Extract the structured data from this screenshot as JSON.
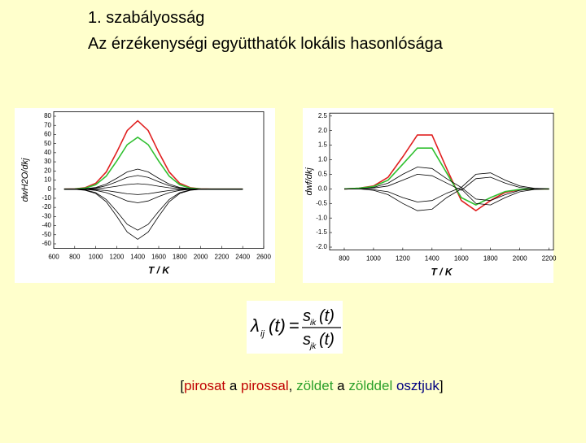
{
  "title_lines": [
    "1. szabályosság",
    "Az érzékenységi együtthatók lokális hasonlósága"
  ],
  "chart_data": [
    {
      "type": "line",
      "ylabel": "dwH2O/dkj",
      "xlabel": "T / K",
      "x": [
        700,
        800,
        900,
        1000,
        1100,
        1200,
        1300,
        1400,
        1500,
        1600,
        1700,
        1800,
        1900,
        2000,
        2100,
        2200,
        2300,
        2400
      ],
      "xlim": [
        600,
        2600
      ],
      "xticks": [
        600,
        800,
        1000,
        1200,
        1400,
        1600,
        1800,
        2000,
        2200,
        2400,
        2600
      ],
      "ylim": [
        -65,
        85
      ],
      "yticks": [
        80,
        70,
        60,
        50,
        40,
        30,
        20,
        10,
        0,
        -10,
        -20,
        -30,
        -40,
        -50,
        -60
      ],
      "series": [
        {
          "color": "#e02020",
          "values": [
            0,
            0.3,
            1.6,
            6.4,
            18.8,
            40.5,
            64.3,
            75,
            64.3,
            40.5,
            18.8,
            6.4,
            1.6,
            0.3,
            0,
            0,
            0,
            0
          ]
        },
        {
          "color": "#30c030",
          "values": [
            0,
            0.2,
            1.2,
            4.8,
            14.3,
            30.8,
            48.8,
            57,
            48.8,
            30.8,
            14.3,
            4.8,
            1.2,
            0.2,
            0,
            0,
            0,
            0
          ]
        },
        {
          "color": "#000000",
          "values": [
            0,
            0.1,
            0.5,
            1.9,
            5.5,
            11.9,
            18.9,
            22,
            18.9,
            11.9,
            5.5,
            1.9,
            0.5,
            0.1,
            0,
            0,
            0,
            0
          ]
        },
        {
          "color": "#000000",
          "values": [
            0,
            0.1,
            0.3,
            1.3,
            3.8,
            8.1,
            12.9,
            15,
            12.9,
            8.1,
            3.8,
            1.3,
            0.3,
            0.1,
            0,
            0,
            0,
            0
          ]
        },
        {
          "color": "#000000",
          "values": [
            0,
            0,
            0.1,
            0.5,
            1.5,
            3.2,
            5.1,
            6,
            5.1,
            3.2,
            1.5,
            0.5,
            0.1,
            0,
            0,
            0,
            0,
            0
          ]
        },
        {
          "color": "#000000",
          "values": [
            0,
            0,
            -0.1,
            -0.5,
            -1.5,
            -3.2,
            -5.1,
            -6,
            -5.1,
            -3.2,
            -1.5,
            -0.5,
            -0.1,
            0,
            0,
            0,
            0,
            0
          ]
        },
        {
          "color": "#000000",
          "values": [
            0,
            -0.1,
            -0.3,
            -1.3,
            -3.8,
            -8.1,
            -12.9,
            -15,
            -12.9,
            -8.1,
            -3.8,
            -1.3,
            -0.3,
            -0.1,
            0,
            0,
            0,
            0
          ]
        },
        {
          "color": "#000000",
          "values": [
            0,
            -0.2,
            -0.9,
            -3.8,
            -11.3,
            -24.3,
            -38.6,
            -45,
            -38.6,
            -24.3,
            -11.3,
            -3.8,
            -0.9,
            -0.2,
            0,
            0,
            0,
            0
          ]
        },
        {
          "color": "#000000",
          "values": [
            0,
            -0.2,
            -1.2,
            -4.7,
            -13.8,
            -29.7,
            -47.1,
            -55,
            -47.1,
            -29.7,
            -13.8,
            -4.7,
            -1.2,
            -0.2,
            0,
            0,
            0,
            0
          ]
        }
      ]
    },
    {
      "type": "line",
      "ylabel": "dwf/dkj",
      "xlabel": "T / K",
      "x": [
        800,
        900,
        1000,
        1100,
        1200,
        1300,
        1400,
        1500,
        1600,
        1700,
        1800,
        1900,
        2000,
        2100,
        2200
      ],
      "xlim": [
        700,
        2230
      ],
      "xticks": [
        800,
        1000,
        1200,
        1400,
        1600,
        1800,
        2000,
        2200
      ],
      "ylim": [
        -2.1,
        2.6
      ],
      "yticks": [
        2.5,
        {
          "value": 2,
          "label": "2.0"
        },
        1.5,
        {
          "value": 1,
          "label": "1.0"
        },
        0.5,
        {
          "value": 0,
          "label": "0.0"
        },
        -0.5,
        {
          "value": -1,
          "label": "-1.0"
        },
        -1.5,
        {
          "value": -2,
          "label": "-2.0"
        }
      ],
      "series": [
        {
          "color": "#e02020",
          "values": [
            0,
            0.02,
            0.1,
            0.4,
            1.1,
            1.85,
            1.85,
            0.7,
            -0.4,
            -0.75,
            -0.4,
            -0.12,
            -0.03,
            0,
            0
          ]
        },
        {
          "color": "#30c030",
          "values": [
            0,
            0.02,
            0.08,
            0.3,
            0.85,
            1.4,
            1.4,
            0.55,
            -0.3,
            -0.55,
            -0.3,
            -0.09,
            -0.02,
            0,
            0
          ]
        },
        {
          "color": "#000000",
          "values": [
            0,
            0,
            0.05,
            0.2,
            0.5,
            0.75,
            0.7,
            0.35,
            0.05,
            0.5,
            0.55,
            0.3,
            0.1,
            0.02,
            0
          ]
        },
        {
          "color": "#000000",
          "values": [
            0,
            0,
            0.03,
            0.1,
            0.3,
            0.5,
            0.45,
            0.2,
            -0.05,
            0.35,
            0.4,
            0.2,
            0.05,
            0,
            0
          ]
        },
        {
          "color": "#000000",
          "values": [
            0,
            0,
            -0.03,
            -0.1,
            -0.3,
            -0.45,
            -0.4,
            -0.15,
            0.05,
            -0.35,
            -0.4,
            -0.2,
            -0.05,
            0,
            0
          ]
        },
        {
          "color": "#000000",
          "values": [
            0,
            0,
            -0.05,
            -0.2,
            -0.5,
            -0.75,
            -0.7,
            -0.3,
            0,
            -0.5,
            -0.55,
            -0.3,
            -0.1,
            -0.02,
            0
          ]
        }
      ]
    }
  ],
  "formula": {
    "lambda": "λ",
    "lambda_sub": "ij",
    "arg": "(t)",
    "eq": "=",
    "num": "s",
    "num_sub": "ik",
    "den": "s",
    "den_sub": "jk"
  },
  "caption": [
    {
      "text": "[",
      "color": "#000000"
    },
    {
      "text": "pirosat",
      "color": "#c00000"
    },
    {
      "text": " a ",
      "color": "#000000"
    },
    {
      "text": "pirossal",
      "color": "#c00000"
    },
    {
      "text": ", ",
      "color": "#000000"
    },
    {
      "text": "zöldet",
      "color": "#2aa02a"
    },
    {
      "text": " a ",
      "color": "#000000"
    },
    {
      "text": "zölddel",
      "color": "#2aa02a"
    },
    {
      "text": " ",
      "color": "#000000"
    },
    {
      "text": "osztjuk",
      "color": "#000080"
    },
    {
      "text": "]",
      "color": "#000000"
    }
  ]
}
